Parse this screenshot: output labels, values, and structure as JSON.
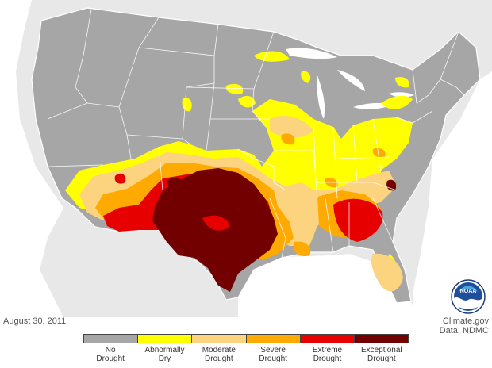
{
  "date": "August 30, 2011",
  "credit": {
    "line1": "Climate.gov",
    "line2": "Data: NDMC"
  },
  "logo": {
    "text": "NOAA",
    "icon": "noaa-logo-icon"
  },
  "colors": {
    "background": "#ffffff",
    "land_outside": "#e0e0e0",
    "water": "#ffffff",
    "state_fill": "#a6a6a6",
    "state_border": "#ffffff",
    "no_drought": "#a6a6a6",
    "abnormally_dry": "#ffff00",
    "moderate": "#fcd37f",
    "severe": "#ffaa00",
    "extreme": "#e60000",
    "exceptional": "#730000"
  },
  "legend": [
    {
      "label": "No\nDrought",
      "color": "#a6a6a6"
    },
    {
      "label": "Abnormally\nDry",
      "color": "#ffff00"
    },
    {
      "label": "Moderate\nDrought",
      "color": "#fcd37f"
    },
    {
      "label": "Severe\nDrought",
      "color": "#ffaa00"
    },
    {
      "label": "Extreme\nDrought",
      "color": "#e60000"
    },
    {
      "label": "Exceptional\nDrought",
      "color": "#730000"
    }
  ]
}
